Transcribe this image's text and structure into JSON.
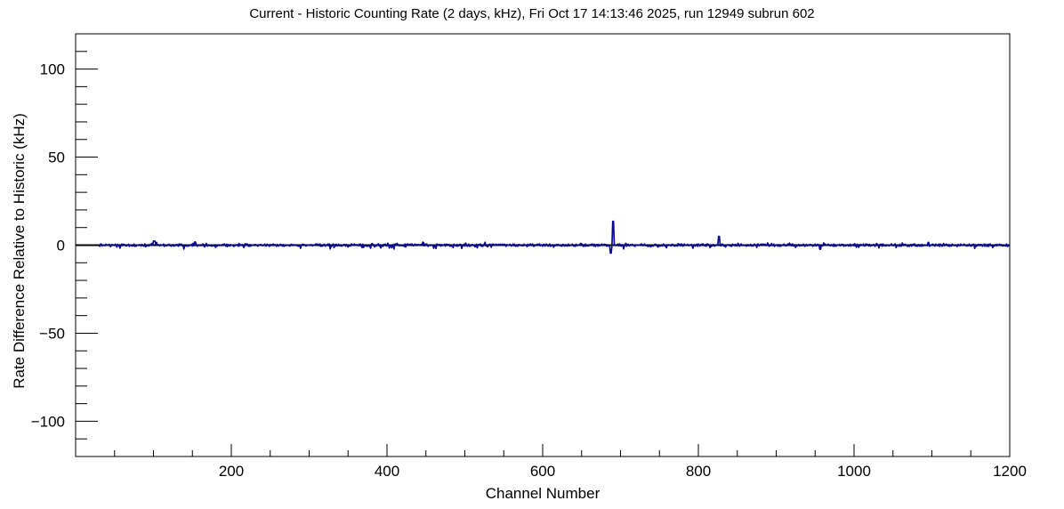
{
  "page": {
    "background": "#ffffff",
    "frame_color": "#000000"
  },
  "chart_data": {
    "type": "line",
    "title": "Current - Historic Counting Rate (2 days, kHz), Fri Oct 17 14:13:46 2025, run 12949 subrun 602",
    "xlabel": "Channel Number",
    "ylabel": "Rate Difference Relative to Historic (kHz)",
    "x_range": [
      0,
      1200
    ],
    "y_range": [
      -120,
      120
    ],
    "x_major_ticks": [
      200,
      400,
      600,
      800,
      1000,
      1200
    ],
    "x_tick_labels": [
      "200",
      "400",
      "600",
      "800",
      "1000",
      "1200"
    ],
    "x_minor_step": 50,
    "y_major_ticks": [
      -100,
      -50,
      0,
      50,
      100
    ],
    "y_tick_labels": [
      "−100",
      "−50",
      "0",
      "50",
      "100"
    ],
    "y_minor_step": 10,
    "grid": false,
    "legend": false,
    "line_color": "#0b0b8f",
    "zero_line_color": "#000000",
    "baseline_value": 0,
    "noise_amplitude_khz": 0.7,
    "noise_seed": 20251017,
    "data_start_channel": 30,
    "data_end_channel": 1200,
    "notable_points": [
      {
        "channel": 100,
        "value": 2.3,
        "width": 3
      },
      {
        "channel": 153,
        "value": 1.8,
        "width": 2
      },
      {
        "channel": 687,
        "value": -4.5,
        "width": 2
      },
      {
        "channel": 690,
        "value": 13.5,
        "width": 2
      },
      {
        "channel": 826,
        "value": 5.0,
        "width": 2
      },
      {
        "channel": 956,
        "value": -2.3,
        "width": 2
      },
      {
        "channel": 1095,
        "value": 1.5,
        "width": 2
      }
    ]
  }
}
